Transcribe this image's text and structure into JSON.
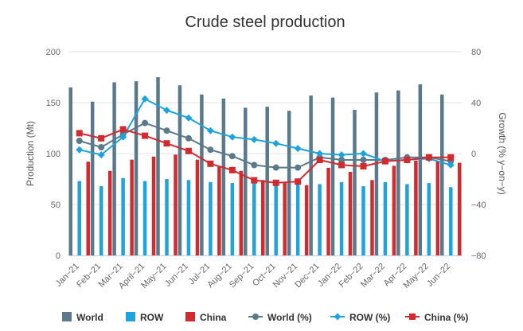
{
  "chart_data": {
    "type": "bar",
    "title": "Crude steel production",
    "categories": [
      "Jan−21",
      "Feb−21",
      "Mar−21",
      "April−21",
      "May−21",
      "Jun−21",
      "Jul−21",
      "Aug−21",
      "Sep−21",
      "Oct−21",
      "Nov−21",
      "Dec−21",
      "Jan−22",
      "Feb−22",
      "Mar−22",
      "Apr−22",
      "May−22",
      "Jun−22"
    ],
    "ylabel": "Production (Mt)",
    "ylabel2": "Growth (% y−on−y)",
    "ylim": [
      0,
      200
    ],
    "ylim2": [
      -80,
      80
    ],
    "yticks": [
      "0",
      "50",
      "100",
      "150",
      "200"
    ],
    "yticks2": [
      "−80",
      "−40",
      "0",
      "40",
      "80"
    ],
    "grid": true,
    "legend_position": "bottom",
    "bar_series": [
      {
        "name": "World",
        "color": "#5a7a8c",
        "values": [
          165,
          151,
          170,
          171,
          175,
          167,
          158,
          154,
          145,
          146,
          142,
          157,
          155,
          143,
          160,
          162,
          168,
          158
        ]
      },
      {
        "name": "ROW",
        "color": "#1fa3dc",
        "values": [
          73,
          68,
          76,
          73,
          75,
          74,
          72,
          71,
          71,
          70,
          71,
          70,
          72,
          68,
          72,
          70,
          71,
          67
        ]
      },
      {
        "name": "China",
        "color": "#d12a2f",
        "values": [
          92,
          83,
          94,
          97,
          99,
          94,
          87,
          83,
          74,
          72,
          69,
          86,
          82,
          74,
          88,
          93,
          93,
          91
        ]
      }
    ],
    "line_series": [
      {
        "name": "World (%)",
        "color": "#5a7a8c",
        "marker": "circle",
        "values": [
          10,
          5,
          15,
          24,
          18,
          12,
          3,
          -2,
          -9,
          -11,
          -11,
          -3,
          -5,
          -5,
          -5,
          -3,
          -3,
          -6
        ]
      },
      {
        "name": "ROW (%)",
        "color": "#1fa3dc",
        "marker": "diamond",
        "values": [
          3,
          -1,
          13,
          43,
          34,
          28,
          18,
          13,
          11,
          8,
          4,
          0,
          -1,
          0,
          -6,
          -5,
          -4,
          -9
        ]
      },
      {
        "name": "China (%)",
        "color": "#d12a2f",
        "marker": "square",
        "values": [
          16,
          12,
          19,
          14,
          8,
          2,
          -8,
          -13,
          -21,
          -23,
          -22,
          -5,
          -9,
          -10,
          -6,
          -5,
          -3,
          -3
        ]
      }
    ]
  }
}
